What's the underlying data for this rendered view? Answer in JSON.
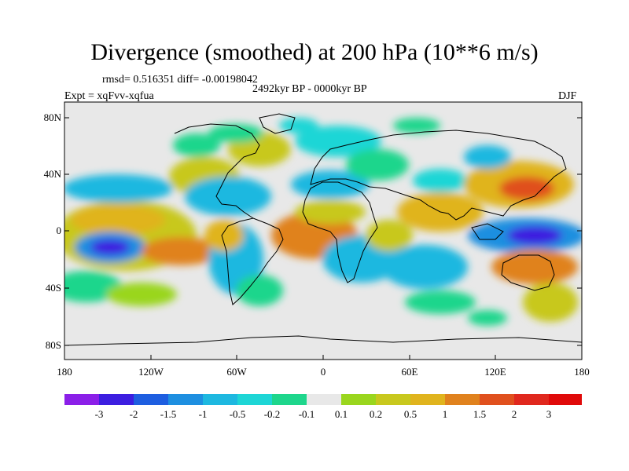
{
  "title": "Divergence (smoothed) at 200 hPa (10**6 m/s)",
  "stats": "rmsd= 0.516351  diff= -0.00198042",
  "period": "2492kyr BP - 0000kyr BP",
  "experiment": "Expt = xqFvv-xqfua",
  "season": "DJF",
  "map": {
    "projection": "cylindrical-equidistant",
    "lat_labels": [
      "80N",
      "40N",
      "0",
      "40S",
      "80S"
    ],
    "lon_labels": [
      "180",
      "120W",
      "60W",
      "0",
      "60E",
      "120E",
      "180"
    ],
    "ocean_color": "#e8e8e8"
  },
  "colorbar": {
    "labels": [
      "-3",
      "-2",
      "-1.5",
      "-1",
      "-0.5",
      "-0.2",
      "-0.1",
      "0.1",
      "0.2",
      "0.5",
      "1",
      "1.5",
      "2",
      "3"
    ],
    "colors": [
      "#8b1fe8",
      "#3c1ee0",
      "#1e5ee0",
      "#1e8fe0",
      "#1eb8e0",
      "#1ed6d6",
      "#1ed68c",
      "#e8e8e8",
      "#9ad61e",
      "#c8c81e",
      "#e0b41e",
      "#e0821e",
      "#e0501e",
      "#e0281e",
      "#e00a0a"
    ]
  }
}
